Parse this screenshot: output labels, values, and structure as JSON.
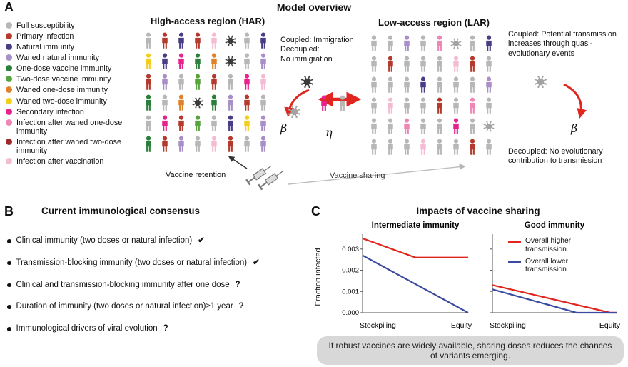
{
  "panelA": {
    "label": "A",
    "title": "Model overview",
    "palette": {
      "S": "#b9b6b6",
      "P": "#b43a2d",
      "N": "#4a3d86",
      "W": "#a98fc7",
      "O1": "#2c7f3a",
      "O2": "#57a33e",
      "WO": "#e0812c",
      "WT": "#f2cf1d",
      "SI": "#e6238d",
      "I1": "#ef87b6",
      "I2": "#9c2a28",
      "IV": "#f4bcd3",
      "V": "#3b3b3b",
      "Vg": "#a5a2a2"
    },
    "legend": [
      {
        "label": "Full susceptibility",
        "color": "#b9b6b6"
      },
      {
        "label": "Primary infection",
        "color": "#b43a2d"
      },
      {
        "label": "Natural immunity",
        "color": "#4a3d86"
      },
      {
        "label": "Waned natural immunity",
        "color": "#a98fc7"
      },
      {
        "label": "One-dose vaccine immunity",
        "color": "#2c7f3a"
      },
      {
        "label": "Two-dose vaccine immunity",
        "color": "#57a33e"
      },
      {
        "label": "Waned one-dose immunity",
        "color": "#e0812c"
      },
      {
        "label": "Waned two-dose immunity",
        "color": "#f2cf1d"
      },
      {
        "label": "Secondary infection",
        "color": "#e6238d"
      },
      {
        "label": "Infection after waned one-dose immunity",
        "color": "#ef87b6"
      },
      {
        "label": "Infection after waned two-dose immunity",
        "color": "#9c2a28"
      },
      {
        "label": "Infection after vaccination",
        "color": "#f4bcd3"
      }
    ],
    "har": {
      "title": "High-access region (HAR)",
      "grid": [
        [
          "S",
          "P",
          "N",
          "P",
          "IV",
          "V",
          "S",
          "N"
        ],
        [
          "WT",
          "N",
          "SI",
          "O1",
          "WO",
          "V",
          "S",
          "W"
        ],
        [
          "P",
          "W",
          "S",
          "O2",
          "P",
          "S",
          "SI",
          "IV"
        ],
        [
          "O1",
          "S",
          "WO",
          "V",
          "O1",
          "W",
          "P",
          "S"
        ],
        [
          "S",
          "SI",
          "P",
          "O2",
          "S",
          "N",
          "WT",
          "W"
        ],
        [
          "O1",
          "P",
          "W",
          "S",
          "IV",
          "P",
          "S",
          "W"
        ]
      ]
    },
    "lar": {
      "title": "Low-access region (LAR)",
      "grid": [
        [
          "S",
          "S",
          "W",
          "S",
          "I1",
          "Vg",
          "S",
          "N"
        ],
        [
          "S",
          "P",
          "S",
          "S",
          "S",
          "IV",
          "P",
          "S"
        ],
        [
          "S",
          "S",
          "S",
          "N",
          "S",
          "S",
          "S",
          "W"
        ],
        [
          "S",
          "IV",
          "S",
          "S",
          "P",
          "S",
          "I1",
          "S"
        ],
        [
          "S",
          "S",
          "I1",
          "S",
          "S",
          "SI",
          "S",
          "Vg"
        ],
        [
          "S",
          "S",
          "S",
          "IV",
          "S",
          "S",
          "P",
          "S"
        ]
      ]
    },
    "middle": {
      "note": "Coupled: Immigration\nDecoupled:\nNo immigration",
      "people": [
        "SI",
        "S"
      ]
    },
    "right": {
      "coupled_note": "Coupled: Potential transmission increases through quasi-evolutionary events",
      "decoupled_note": "Decoupled: No evolutionary contribution to transmission"
    },
    "symbols": {
      "beta": "β",
      "eta": "η"
    },
    "bottom": {
      "retention_label": "Vaccine retention",
      "sharing_label": "Vaccine sharing"
    }
  },
  "panelB": {
    "label": "B",
    "title": "Current immunological consensus",
    "items": [
      {
        "text": "Clinical immunity (two doses or natural infection)",
        "mark": "✔"
      },
      {
        "text": "Transmission-blocking immunity (two doses or natural infection)",
        "mark": "✔"
      },
      {
        "text": "Clinical and transmission-blocking immunity after one dose",
        "mark": "?"
      },
      {
        "text": "Duration of immunity (two doses or natural infection)≥1 year",
        "mark": "?"
      },
      {
        "text": "Immunological drivers of viral evolution",
        "mark": "?"
      }
    ]
  },
  "panelC": {
    "label": "C",
    "title": "Impacts of vaccine sharing",
    "takeaway": "If robust vaccines are widely available, sharing doses reduces the chances of variants emerging."
  },
  "chart_data": [
    {
      "type": "line",
      "title": "Intermediate immunity",
      "ylabel": "Fraction infected",
      "xlabel_left": "Stockpiling",
      "xlabel_right": "Equity",
      "ylim": [
        0,
        0.0037
      ],
      "yticks": [
        "0.000",
        "0.001",
        "0.002",
        "0.003"
      ],
      "grid": false,
      "series": [
        {
          "name": "Overall higher transmission",
          "color": "#e0261f",
          "x": [
            0,
            0.5,
            1
          ],
          "y": [
            0.0035,
            0.0026,
            0.0026
          ]
        },
        {
          "name": "Overall lower transmission",
          "color": "#3b4ba0",
          "x": [
            0,
            1
          ],
          "y": [
            0.0027,
            0.0
          ]
        }
      ]
    },
    {
      "type": "line",
      "title": "Good immunity",
      "xlabel_left": "Stockpiling",
      "xlabel_right": "Equity",
      "ylim": [
        0,
        0.0037
      ],
      "yticks": [
        "0.000",
        "0.001",
        "0.002",
        "0.003"
      ],
      "grid": false,
      "legend_position": "top-right",
      "series": [
        {
          "name": "Overall higher transmission",
          "color": "#e0261f",
          "x": [
            0,
            0.95,
            1
          ],
          "y": [
            0.0013,
            0.0,
            0.0
          ]
        },
        {
          "name": "Overall lower transmission",
          "color": "#3b4ba0",
          "x": [
            0,
            0.68,
            1
          ],
          "y": [
            0.0011,
            0.0,
            0.0
          ]
        }
      ]
    }
  ]
}
